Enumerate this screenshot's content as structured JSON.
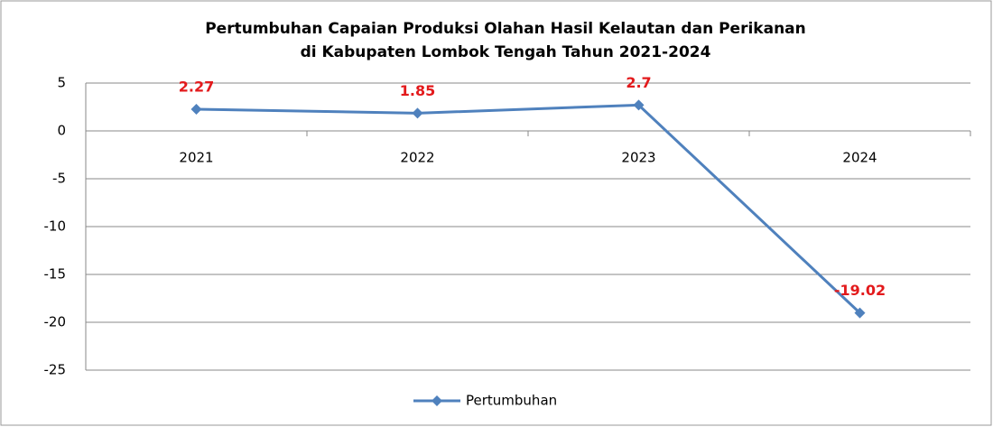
{
  "chart_data": {
    "type": "line",
    "title": [
      "Pertumbuhan Capaian Produksi Olahan Hasil Kelautan dan Perikanan",
      "di Kabupaten Lombok Tengah Tahun 2021-2024"
    ],
    "categories": [
      "2021",
      "2022",
      "2023",
      "2024"
    ],
    "series": [
      {
        "name": "Pertumbuhan",
        "color": "#4f81bd",
        "values": [
          2.27,
          1.85,
          2.7,
          -19.02
        ]
      }
    ],
    "ylim": [
      -25,
      5
    ],
    "yticks": [
      5,
      0,
      -5,
      -10,
      -15,
      -20,
      -25
    ],
    "grid": true,
    "value_label_color": "#e31a1c",
    "legend": "bottom"
  }
}
